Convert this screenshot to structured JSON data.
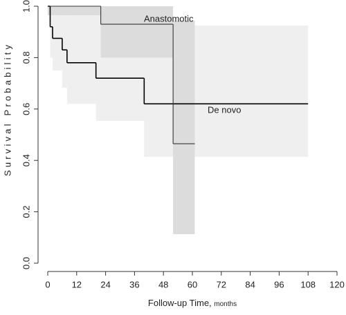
{
  "chart_data": {
    "type": "survival",
    "xlabel": "Follow-up Time,",
    "xlabel_unit": "months",
    "ylabel": "Survival Probability",
    "xlim": [
      0,
      120
    ],
    "xticks": [
      0,
      12,
      24,
      36,
      48,
      60,
      72,
      84,
      96,
      108,
      120
    ],
    "ylim": [
      0,
      1
    ],
    "yticks": [
      {
        "value": 0,
        "label": "0.0"
      },
      0.2,
      0.4,
      0.6,
      0.8,
      {
        "value": 1,
        "label": "1.0"
      }
    ],
    "series": [
      {
        "name": "De novo",
        "color": "#000000",
        "band_color": "#efefef",
        "x": [
          0,
          1,
          2,
          6,
          8,
          20,
          40
        ],
        "end": 108,
        "values": [
          1,
          0.92,
          0.875,
          0.83,
          0.78,
          0.72,
          0.62
        ],
        "lower": [
          1,
          0.8,
          0.75,
          0.683,
          0.62,
          0.554,
          0.414
        ],
        "upper": [
          1,
          1,
          1,
          1,
          1,
          1,
          0.925
        ]
      },
      {
        "name": "Anastomotic",
        "color": "#333333",
        "band_color": "#dcdcdc",
        "x": [
          0,
          22,
          52
        ],
        "end": 61,
        "values": [
          1,
          0.93,
          0.465
        ],
        "lower": [
          0.965,
          0.8,
          0.113
        ],
        "upper": [
          1,
          1,
          0.944
        ]
      }
    ]
  }
}
